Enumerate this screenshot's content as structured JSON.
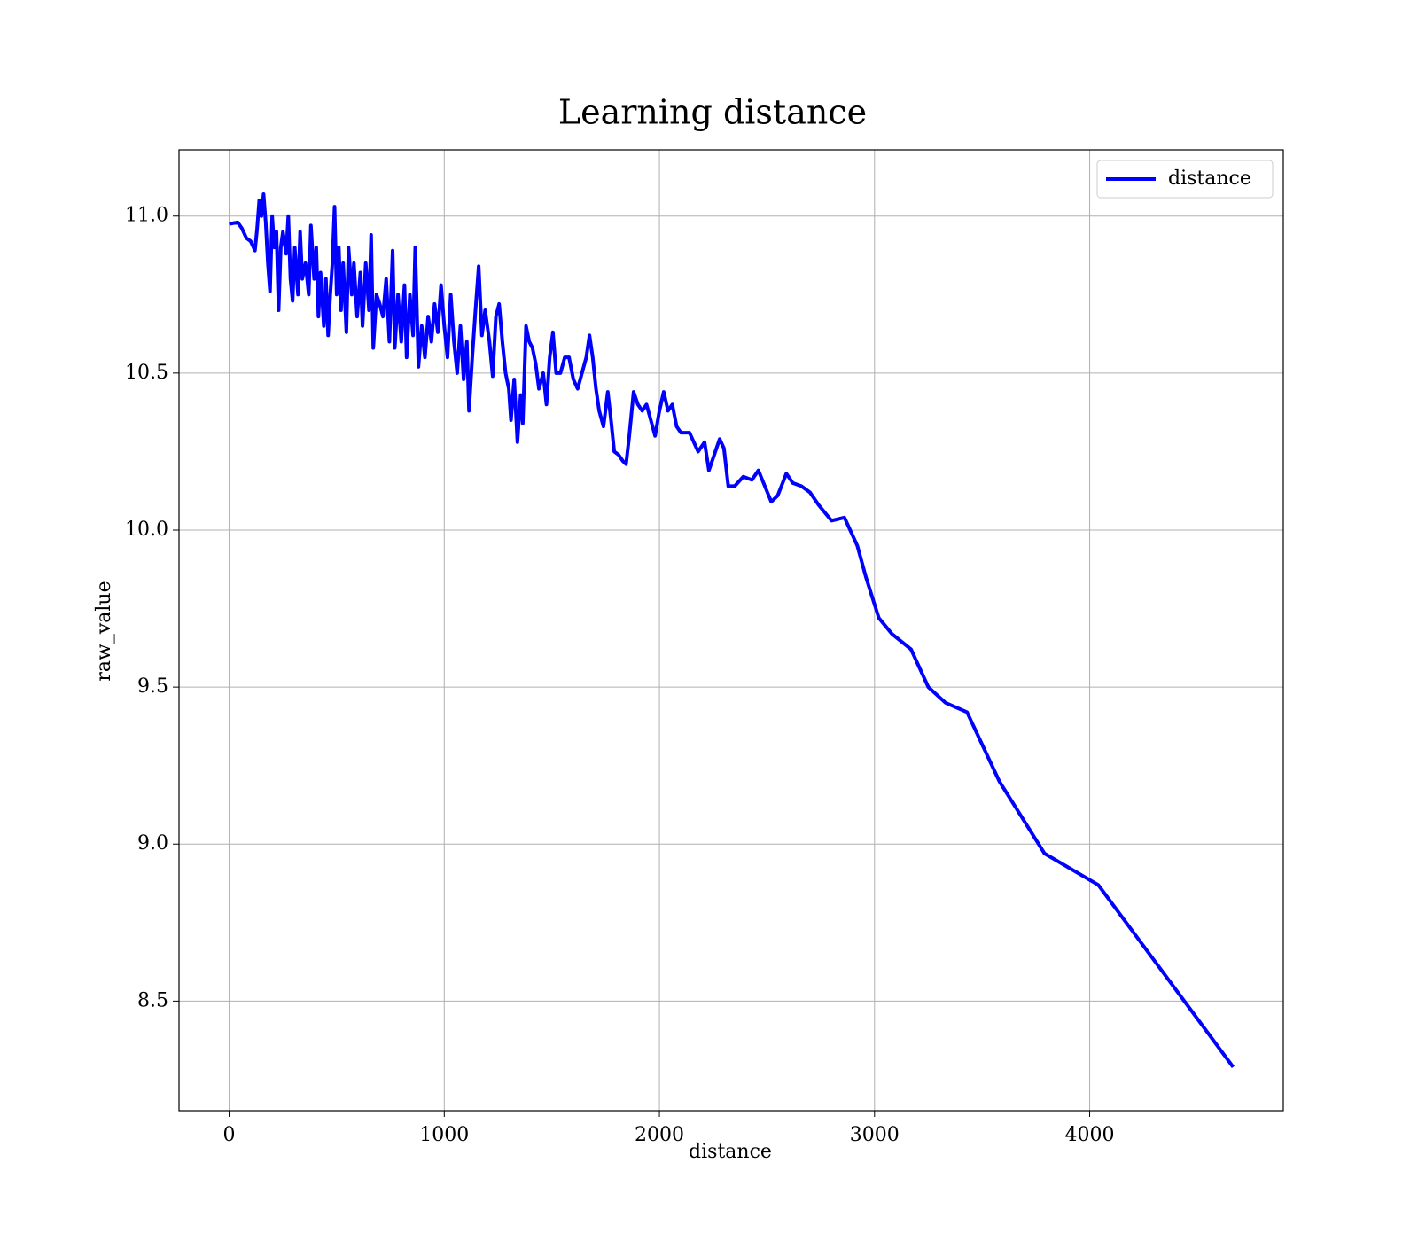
{
  "chart_data": {
    "type": "line",
    "title": "Learning distance",
    "x_label": "distance",
    "y_label": "raw_value",
    "xlim": [
      -233,
      4900
    ],
    "ylim": [
      8.151,
      11.211
    ],
    "xticks": [
      0,
      1000,
      2000,
      3000,
      4000
    ],
    "yticks": [
      {
        "value": 8.5,
        "label": "8.5"
      },
      {
        "value": 9.0,
        "label": "9.0"
      },
      {
        "value": 9.5,
        "label": "9.5"
      },
      {
        "value": 10.0,
        "label": "10.0"
      },
      {
        "value": 10.5,
        "label": "10.5"
      },
      {
        "value": 11.0,
        "label": "11.0"
      }
    ],
    "grid": true,
    "legend": "upper right",
    "x": [
      0,
      40,
      60,
      80,
      100,
      120,
      130,
      140,
      150,
      160,
      170,
      180,
      190,
      200,
      210,
      220,
      230,
      240,
      250,
      265,
      275,
      285,
      295,
      305,
      320,
      330,
      340,
      355,
      370,
      380,
      395,
      405,
      415,
      425,
      440,
      450,
      460,
      470,
      480,
      490,
      500,
      510,
      520,
      530,
      545,
      555,
      570,
      580,
      595,
      610,
      620,
      635,
      650,
      660,
      670,
      685,
      700,
      715,
      730,
      745,
      760,
      770,
      785,
      800,
      815,
      825,
      840,
      855,
      865,
      880,
      895,
      910,
      925,
      940,
      955,
      970,
      985,
      1000,
      1015,
      1030,
      1045,
      1060,
      1075,
      1090,
      1105,
      1115,
      1130,
      1145,
      1160,
      1175,
      1190,
      1210,
      1225,
      1240,
      1255,
      1270,
      1285,
      1300,
      1310,
      1325,
      1340,
      1355,
      1365,
      1380,
      1395,
      1410,
      1425,
      1440,
      1460,
      1475,
      1490,
      1505,
      1520,
      1540,
      1560,
      1580,
      1600,
      1620,
      1640,
      1660,
      1675,
      1690,
      1705,
      1720,
      1740,
      1760,
      1775,
      1790,
      1810,
      1830,
      1845,
      1860,
      1880,
      1900,
      1920,
      1940,
      1960,
      1980,
      2000,
      2020,
      2040,
      2060,
      2080,
      2100,
      2140,
      2180,
      2210,
      2230,
      2260,
      2280,
      2300,
      2320,
      2350,
      2390,
      2430,
      2460,
      2490,
      2520,
      2550,
      2590,
      2620,
      2660,
      2700,
      2740,
      2800,
      2860,
      2920,
      2960,
      3020,
      3080,
      3170,
      3250,
      3330,
      3430,
      3580,
      3790,
      4040,
      4667
    ],
    "series": [
      {
        "name": "distance",
        "color": "#0000ff",
        "values": [
          10.975,
          10.98,
          10.96,
          10.93,
          10.92,
          10.89,
          10.96,
          11.05,
          11.0,
          11.07,
          10.98,
          10.85,
          10.76,
          11.0,
          10.9,
          10.95,
          10.7,
          10.9,
          10.95,
          10.88,
          11.0,
          10.8,
          10.73,
          10.9,
          10.75,
          10.95,
          10.8,
          10.85,
          10.75,
          10.97,
          10.8,
          10.9,
          10.68,
          10.82,
          10.65,
          10.8,
          10.62,
          10.75,
          10.85,
          11.03,
          10.75,
          10.9,
          10.7,
          10.85,
          10.63,
          10.9,
          10.75,
          10.85,
          10.68,
          10.82,
          10.65,
          10.85,
          10.7,
          10.94,
          10.58,
          10.75,
          10.72,
          10.68,
          10.8,
          10.6,
          10.89,
          10.58,
          10.75,
          10.6,
          10.78,
          10.55,
          10.75,
          10.62,
          10.9,
          10.52,
          10.65,
          10.55,
          10.68,
          10.6,
          10.72,
          10.63,
          10.78,
          10.65,
          10.55,
          10.75,
          10.6,
          10.5,
          10.65,
          10.48,
          10.6,
          10.38,
          10.55,
          10.7,
          10.84,
          10.62,
          10.7,
          10.6,
          10.49,
          10.68,
          10.72,
          10.6,
          10.5,
          10.45,
          10.35,
          10.48,
          10.28,
          10.43,
          10.34,
          10.65,
          10.6,
          10.58,
          10.53,
          10.45,
          10.5,
          10.4,
          10.55,
          10.63,
          10.5,
          10.5,
          10.55,
          10.55,
          10.48,
          10.45,
          10.5,
          10.55,
          10.62,
          10.55,
          10.45,
          10.38,
          10.33,
          10.44,
          10.35,
          10.25,
          10.24,
          10.22,
          10.21,
          10.3,
          10.44,
          10.4,
          10.38,
          10.4,
          10.35,
          10.3,
          10.38,
          10.44,
          10.38,
          10.4,
          10.33,
          10.31,
          10.31,
          10.25,
          10.28,
          10.19,
          10.25,
          10.29,
          10.26,
          10.14,
          10.14,
          10.17,
          10.16,
          10.19,
          10.14,
          10.09,
          10.11,
          10.18,
          10.15,
          10.14,
          10.12,
          10.08,
          10.03,
          10.04,
          9.95,
          9.85,
          9.72,
          9.67,
          9.62,
          9.5,
          9.45,
          9.42,
          9.2,
          8.97,
          8.87,
          8.29
        ]
      }
    ]
  }
}
